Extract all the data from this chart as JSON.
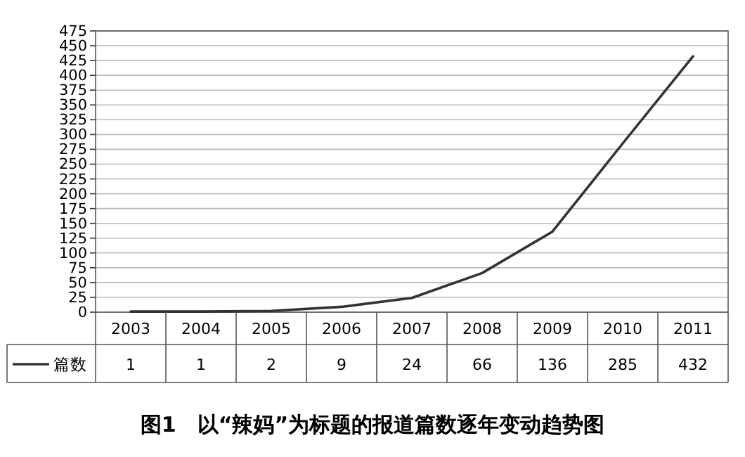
{
  "chart_data": {
    "type": "line",
    "title": "图1　以“辣妈”为标题的报道篇数逐年变动趋势图",
    "categories": [
      "2003",
      "2004",
      "2005",
      "2006",
      "2007",
      "2008",
      "2009",
      "2010",
      "2011"
    ],
    "series": [
      {
        "name": "篇数",
        "color": "#333333",
        "values": [
          1,
          1,
          2,
          9,
          24,
          66,
          136,
          285,
          432
        ]
      }
    ],
    "ylim": [
      0,
      475
    ],
    "yticks": [
      0,
      25,
      50,
      75,
      100,
      125,
      150,
      175,
      200,
      225,
      250,
      275,
      300,
      325,
      350,
      375,
      400,
      425,
      450,
      475
    ],
    "grid": "y",
    "data_labels": true,
    "legend": "bottom"
  }
}
